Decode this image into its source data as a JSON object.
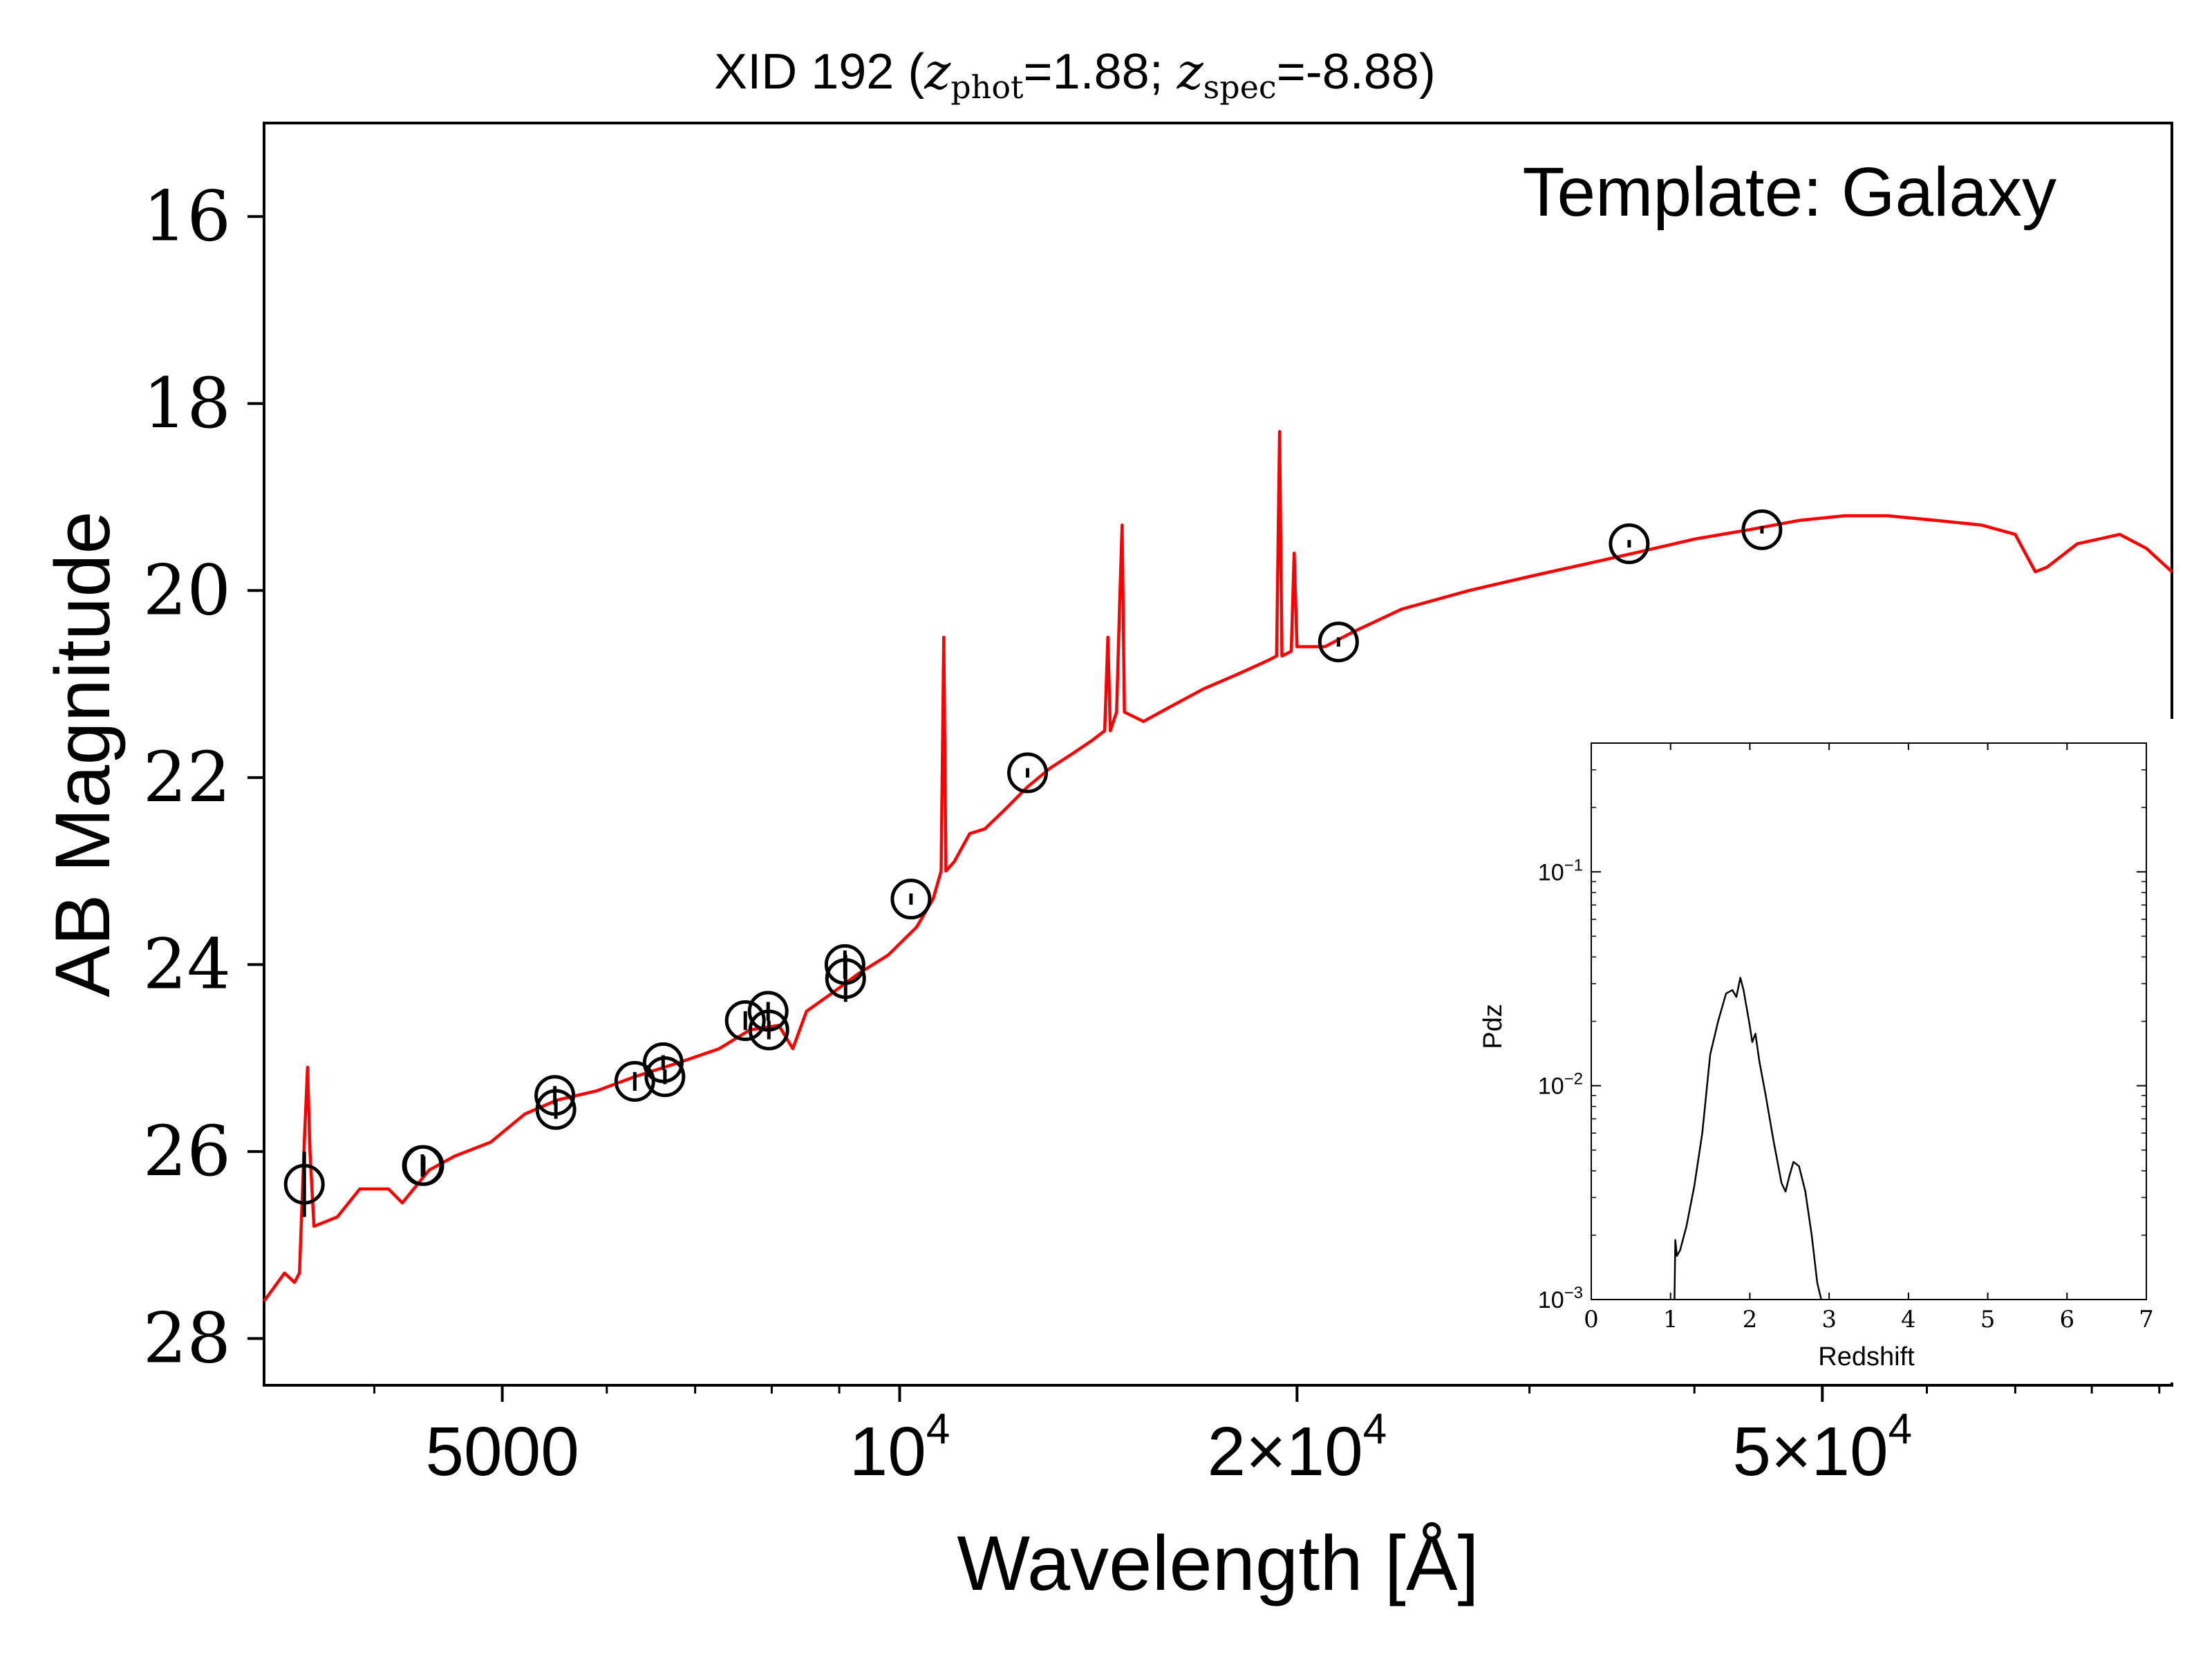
{
  "chart_data": [
    {
      "type": "line",
      "title_prefix": "XID 192 (",
      "title_z1": "z",
      "title_sub1": "phot",
      "title_mid": "=1.88; ",
      "title_z2": "z",
      "title_sub2": "spec",
      "title_suffix": "=-8.88)",
      "xlabel": "Wavelength [Å]",
      "ylabel": "AB Magnitude",
      "annotation": "Template: Galaxy",
      "x_scale": "log",
      "xlim": [
        3300,
        92000
      ],
      "ylim": [
        28.5,
        15.0
      ],
      "y_inverted": true,
      "x_ticks": [
        {
          "value": 5000,
          "base": "5000",
          "exp": ""
        },
        {
          "value": 10000,
          "base": "10",
          "exp": "4"
        },
        {
          "value": 20000,
          "base": "2×10",
          "exp": "4"
        },
        {
          "value": 50000,
          "base": "5×10",
          "exp": "4"
        }
      ],
      "y_ticks": [
        {
          "value": 16,
          "label": "16"
        },
        {
          "value": 18,
          "label": "18"
        },
        {
          "value": 20,
          "label": "20"
        },
        {
          "value": 22,
          "label": "22"
        },
        {
          "value": 24,
          "label": "24"
        },
        {
          "value": 26,
          "label": "26"
        },
        {
          "value": 28,
          "label": "28"
        }
      ],
      "series": [
        {
          "color": "#ff0000",
          "points": [
            [
              3300,
              27.6
            ],
            [
              3420,
              27.3
            ],
            [
              3480,
              27.4
            ],
            [
              3510,
              27.3
            ],
            [
              3540,
              25.9
            ],
            [
              3560,
              25.1
            ],
            [
              3575,
              26.0
            ],
            [
              3600,
              26.8
            ],
            [
              3750,
              26.7
            ],
            [
              3900,
              26.4
            ],
            [
              4100,
              26.4
            ],
            [
              4200,
              26.55
            ],
            [
              4400,
              26.2
            ],
            [
              4600,
              26.05
            ],
            [
              4900,
              25.9
            ],
            [
              5200,
              25.6
            ],
            [
              5500,
              25.45
            ],
            [
              5900,
              25.35
            ],
            [
              6300,
              25.2
            ],
            [
              6800,
              25.05
            ],
            [
              7300,
              24.9
            ],
            [
              7700,
              24.7
            ],
            [
              8100,
              24.65
            ],
            [
              8300,
              24.9
            ],
            [
              8500,
              24.5
            ],
            [
              8900,
              24.3
            ],
            [
              9300,
              24.1
            ],
            [
              9800,
              23.9
            ],
            [
              10300,
              23.6
            ],
            [
              10600,
              23.3
            ],
            [
              10750,
              23.0
            ],
            [
              10800,
              20.5
            ],
            [
              10840,
              23.0
            ],
            [
              11000,
              22.9
            ],
            [
              11300,
              22.6
            ],
            [
              11600,
              22.55
            ],
            [
              12000,
              22.35
            ],
            [
              12500,
              22.1
            ],
            [
              13000,
              21.9
            ],
            [
              13500,
              21.75
            ],
            [
              14000,
              21.6
            ],
            [
              14300,
              21.5
            ],
            [
              14380,
              20.5
            ],
            [
              14440,
              21.5
            ],
            [
              14600,
              21.3
            ],
            [
              14680,
              20.1
            ],
            [
              14740,
              19.3
            ],
            [
              14800,
              21.3
            ],
            [
              15300,
              21.4
            ],
            [
              16000,
              21.25
            ],
            [
              17000,
              21.05
            ],
            [
              18000,
              20.9
            ],
            [
              19000,
              20.75
            ],
            [
              19300,
              20.7
            ],
            [
              19400,
              18.3
            ],
            [
              19480,
              20.7
            ],
            [
              19800,
              20.65
            ],
            [
              19900,
              19.6
            ],
            [
              20000,
              20.6
            ],
            [
              21000,
              20.6
            ],
            [
              22000,
              20.45
            ],
            [
              24000,
              20.2
            ],
            [
              27000,
              20.0
            ],
            [
              30000,
              19.85
            ],
            [
              33000,
              19.72
            ],
            [
              36000,
              19.6
            ],
            [
              40000,
              19.45
            ],
            [
              44000,
              19.35
            ],
            [
              48000,
              19.25
            ],
            [
              52000,
              19.2
            ],
            [
              56000,
              19.2
            ],
            [
              61000,
              19.25
            ],
            [
              66000,
              19.3
            ],
            [
              70000,
              19.4
            ],
            [
              72500,
              19.8
            ],
            [
              74000,
              19.75
            ],
            [
              78000,
              19.5
            ],
            [
              84000,
              19.4
            ],
            [
              88000,
              19.55
            ],
            [
              92000,
              19.8
            ]
          ]
        }
      ],
      "photometry": [
        {
          "x": 3540,
          "y": 26.35,
          "err": 0.35
        },
        {
          "x": 4350,
          "y": 26.15,
          "err": 0.12
        },
        {
          "x": 4360,
          "y": 26.15,
          "err": 0.1
        },
        {
          "x": 5480,
          "y": 25.4,
          "err": 0.1
        },
        {
          "x": 5490,
          "y": 25.55,
          "err": 0.1
        },
        {
          "x": 6300,
          "y": 25.25,
          "err": 0.1
        },
        {
          "x": 6620,
          "y": 25.05,
          "err": 0.08
        },
        {
          "x": 6640,
          "y": 25.2,
          "err": 0.08
        },
        {
          "x": 7640,
          "y": 24.6,
          "err": 0.1
        },
        {
          "x": 7950,
          "y": 24.5,
          "err": 0.1
        },
        {
          "x": 7960,
          "y": 24.7,
          "err": 0.1
        },
        {
          "x": 9090,
          "y": 24.0,
          "err": 0.15
        },
        {
          "x": 9100,
          "y": 24.15,
          "err": 0.25
        },
        {
          "x": 10200,
          "y": 23.3,
          "err": 0.06
        },
        {
          "x": 12500,
          "y": 21.95,
          "err": 0.05
        },
        {
          "x": 21500,
          "y": 20.55,
          "err": 0.05
        },
        {
          "x": 35700,
          "y": 19.5,
          "err": 0.04
        },
        {
          "x": 45000,
          "y": 19.35,
          "err": 0.04
        }
      ]
    },
    {
      "type": "line",
      "xlabel": "Redshift",
      "ylabel": "Pdz",
      "x_scale": "linear",
      "y_scale": "log",
      "xlim": [
        0,
        7
      ],
      "ylim": [
        0.001,
        0.4
      ],
      "x_ticks": [
        {
          "value": 0,
          "label": "0"
        },
        {
          "value": 1,
          "label": "1"
        },
        {
          "value": 2,
          "label": "2"
        },
        {
          "value": 3,
          "label": "3"
        },
        {
          "value": 4,
          "label": "4"
        },
        {
          "value": 5,
          "label": "5"
        },
        {
          "value": 6,
          "label": "6"
        },
        {
          "value": 7,
          "label": "7"
        }
      ],
      "y_ticks": [
        {
          "value": 0.1,
          "base": "10",
          "exp": "−1"
        },
        {
          "value": 0.01,
          "base": "10",
          "exp": "−2"
        },
        {
          "value": 0.001,
          "base": "10",
          "exp": "−3"
        }
      ],
      "series": [
        {
          "color": "#000000",
          "points": [
            [
              1.05,
              0.001
            ],
            [
              1.06,
              0.0019
            ],
            [
              1.08,
              0.0016
            ],
            [
              1.12,
              0.0017
            ],
            [
              1.2,
              0.0022
            ],
            [
              1.3,
              0.0034
            ],
            [
              1.4,
              0.006
            ],
            [
              1.5,
              0.014
            ],
            [
              1.6,
              0.02
            ],
            [
              1.7,
              0.027
            ],
            [
              1.78,
              0.028
            ],
            [
              1.83,
              0.026
            ],
            [
              1.88,
              0.032
            ],
            [
              1.92,
              0.028
            ],
            [
              1.97,
              0.022
            ],
            [
              2.0,
              0.019
            ],
            [
              2.03,
              0.016
            ],
            [
              2.07,
              0.0175
            ],
            [
              2.12,
              0.013
            ],
            [
              2.2,
              0.009
            ],
            [
              2.3,
              0.0055
            ],
            [
              2.4,
              0.0035
            ],
            [
              2.45,
              0.0032
            ],
            [
              2.5,
              0.0038
            ],
            [
              2.55,
              0.0044
            ],
            [
              2.62,
              0.0042
            ],
            [
              2.7,
              0.0032
            ],
            [
              2.78,
              0.002
            ],
            [
              2.85,
              0.0012
            ],
            [
              2.9,
              0.001
            ]
          ]
        }
      ]
    }
  ]
}
